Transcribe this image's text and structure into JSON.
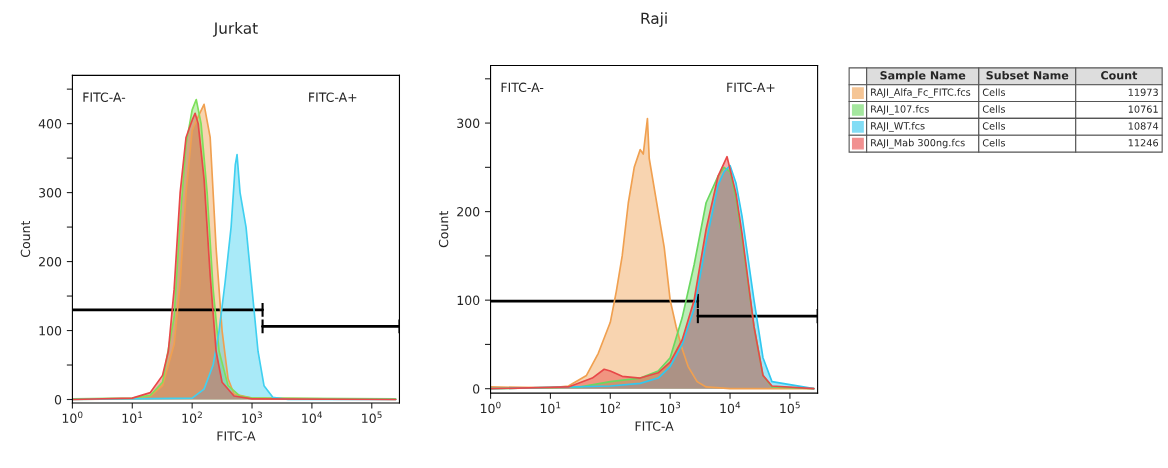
{
  "chart_data": [
    {
      "type": "area",
      "title": "Jurkat",
      "xlabel": "FITC-A",
      "ylabel": "Count",
      "log": "x",
      "xlim": [
        1,
        290000
      ],
      "ylim": [
        -5,
        470
      ],
      "xticks": [
        {
          "value": 1,
          "label": "10$^{0}$"
        },
        {
          "value": 10,
          "label": "10$^{1}$"
        },
        {
          "value": 100,
          "label": "10$^{2}$"
        },
        {
          "value": 1000,
          "label": "10$^{3}$"
        },
        {
          "value": 10000,
          "label": "10$^{4}$"
        },
        {
          "value": 100000,
          "label": "10$^{5}$"
        }
      ],
      "yticks": [
        0,
        {
          "value": 50,
          "label": null
        },
        100,
        {
          "value": 150,
          "label": null
        },
        200,
        {
          "value": 250,
          "label": null
        },
        300,
        {
          "value": 350,
          "label": null
        },
        400,
        {
          "value": 450,
          "label": null
        }
      ],
      "annotations": [
        "FITC-A-",
        "FITC-A+"
      ],
      "series": [
        {
          "type": "line",
          "color": "#000000",
          "x": [
            1,
            1500
          ],
          "values": [
            130,
            130
          ],
          "errors": [
            null,
            10
          ]
        },
        {
          "type": "line",
          "color": "#000000",
          "x": [
            1500,
            290000
          ],
          "values": [
            106,
            106
          ],
          "errors": [
            10,
            10
          ]
        },
        {
          "color": "#f0a050",
          "x": [
            1,
            10,
            20,
            32,
            50,
            63,
            79,
            100,
            126,
            158,
            200,
            251,
            316,
            398,
            501,
            1000,
            251189
          ],
          "values": [
            0,
            1,
            5,
            20,
            80,
            170,
            300,
            390,
            410,
            428,
            380,
            220,
            100,
            30,
            8,
            2,
            0
          ]
        },
        {
          "color": "#7ee05a",
          "x": [
            1,
            10,
            20,
            32,
            50,
            63,
            79,
            100,
            117,
            141,
            178,
            224,
            282,
            398,
            631,
            1000,
            251189
          ],
          "values": [
            1,
            2,
            6,
            25,
            120,
            260,
            370,
            420,
            435,
            400,
            300,
            160,
            70,
            20,
            5,
            2,
            1
          ]
        },
        {
          "color": "#40d0f0",
          "x": [
            1,
            100,
            158,
            224,
            282,
            355,
            447,
            525,
            562,
            631,
            794,
            1000,
            1259,
            1585,
            2239,
            3981,
            251189
          ],
          "values": [
            0,
            2,
            15,
            50,
            100,
            170,
            250,
            340,
            355,
            300,
            250,
            160,
            70,
            20,
            3,
            0,
            0
          ]
        },
        {
          "color": "#e84848",
          "x": [
            1,
            10,
            20,
            32,
            40,
            50,
            63,
            79,
            100,
            112,
            126,
            158,
            200,
            251,
            316,
            501,
            1000,
            251189
          ],
          "values": [
            0,
            2,
            10,
            35,
            70,
            160,
            300,
            380,
            405,
            415,
            400,
            320,
            180,
            70,
            25,
            5,
            1,
            0
          ]
        }
      ]
    },
    {
      "type": "area",
      "title": "Raji",
      "xlabel": "FITC-A",
      "ylabel": "Count",
      "log": "x",
      "xlim": [
        1,
        290000
      ],
      "ylim": [
        -5,
        365
      ],
      "legend": "right",
      "legend_title": "Sample Name",
      "xticks": [
        {
          "value": 1,
          "label": "10$^{0}$"
        },
        {
          "value": 10,
          "label": "10$^{1}$"
        },
        {
          "value": 100,
          "label": "10$^{2}$"
        },
        {
          "value": 1000,
          "label": "10$^{3}$"
        },
        {
          "value": 10000,
          "label": "10$^{4}$"
        },
        {
          "value": 100000,
          "label": "10$^{5}$"
        }
      ],
      "yticks": [
        0,
        {
          "value": 50,
          "label": null
        },
        100,
        {
          "value": 150,
          "label": null
        },
        200,
        {
          "value": 250,
          "label": null
        },
        300,
        {
          "value": 350,
          "label": null
        }
      ],
      "annotations": [
        "FITC-A-",
        "FITC-A+",
        "Subset Name",
        "Count",
        "Cells",
        "11973",
        "Cells",
        "10761",
        "Cells",
        "10874",
        "Cells",
        "11246"
      ],
      "series": [
        {
          "type": "line",
          "color": "#000000",
          "x": [
            1,
            2900
          ],
          "values": [
            99,
            99
          ],
          "errors": [
            null,
            8
          ]
        },
        {
          "type": "line",
          "color": "#000000",
          "x": [
            2900,
            290000
          ],
          "values": [
            82,
            82
          ],
          "errors": [
            8,
            8
          ]
        },
        {
          "name": "RAJI_Alfa_Fc_FITC.fcs",
          "color": "#f0a050",
          "x": [
            1,
            10,
            20,
            40,
            63,
            100,
            126,
            158,
            200,
            251,
            316,
            355,
            417,
            447,
            631,
            794,
            1000,
            1259,
            1585,
            1995,
            2818,
            3981,
            10000,
            251189
          ],
          "values": [
            2,
            1,
            3,
            15,
            40,
            75,
            110,
            150,
            210,
            250,
            270,
            265,
            305,
            260,
            200,
            160,
            100,
            70,
            45,
            25,
            8,
            2,
            0,
            0
          ]
        },
        {
          "name": "RAJI_107.fcs",
          "color": "#6ad860",
          "x": [
            1,
            32,
            100,
            316,
            631,
            1000,
            1585,
            2512,
            3162,
            3981,
            6310,
            7943,
            10000,
            12589,
            15849,
            25119,
            35481,
            50119,
            251189
          ],
          "values": [
            0,
            2,
            8,
            12,
            20,
            35,
            80,
            140,
            175,
            210,
            240,
            250,
            245,
            215,
            170,
            70,
            15,
            2,
            0
          ]
        },
        {
          "name": "RAJI_WT.fcs",
          "color": "#30c8f0",
          "x": [
            1,
            100,
            316,
            631,
            1000,
            1585,
            2512,
            3981,
            6310,
            7943,
            10000,
            12589,
            15849,
            25119,
            35481,
            50119,
            251189
          ],
          "values": [
            0,
            3,
            6,
            12,
            25,
            50,
            90,
            165,
            230,
            245,
            252,
            232,
            195,
            100,
            35,
            8,
            0
          ]
        },
        {
          "name": "RAJI_Mab 300ng.fcs",
          "color": "#e84848",
          "x": [
            1,
            20,
            50,
            79,
            100,
            158,
            316,
            631,
            1000,
            1585,
            2512,
            3981,
            6310,
            8913,
            12589,
            15849,
            25119,
            35481,
            50119,
            251189
          ],
          "values": [
            0,
            2,
            12,
            22,
            20,
            14,
            12,
            18,
            30,
            55,
            100,
            180,
            240,
            262,
            220,
            175,
            70,
            15,
            3,
            0
          ]
        }
      ]
    }
  ]
}
